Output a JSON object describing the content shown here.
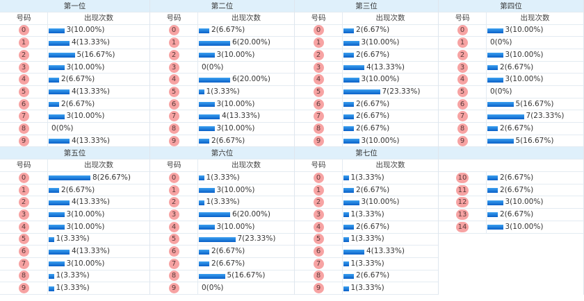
{
  "col_header_number": "号码",
  "col_header_count": "出现次数",
  "bar_color": "#0a78e0",
  "ball_color": "#f7a3a3",
  "positions": [
    {
      "title": "第一位",
      "rows": [
        {
          "n": "0",
          "count": 3,
          "text": "3(10.00%)"
        },
        {
          "n": "1",
          "count": 4,
          "text": "4(13.33%)"
        },
        {
          "n": "2",
          "count": 5,
          "text": "5(16.67%)"
        },
        {
          "n": "3",
          "count": 3,
          "text": "3(10.00%)"
        },
        {
          "n": "4",
          "count": 2,
          "text": "2(6.67%)"
        },
        {
          "n": "5",
          "count": 4,
          "text": "4(13.33%)"
        },
        {
          "n": "6",
          "count": 2,
          "text": "2(6.67%)"
        },
        {
          "n": "7",
          "count": 3,
          "text": "3(10.00%)"
        },
        {
          "n": "8",
          "count": 0,
          "text": "0(0%)"
        },
        {
          "n": "9",
          "count": 4,
          "text": "4(13.33%)"
        }
      ]
    },
    {
      "title": "第二位",
      "rows": [
        {
          "n": "0",
          "count": 2,
          "text": "2(6.67%)"
        },
        {
          "n": "1",
          "count": 6,
          "text": "6(20.00%)"
        },
        {
          "n": "2",
          "count": 3,
          "text": "3(10.00%)"
        },
        {
          "n": "3",
          "count": 0,
          "text": "0(0%)"
        },
        {
          "n": "4",
          "count": 6,
          "text": "6(20.00%)"
        },
        {
          "n": "5",
          "count": 1,
          "text": "1(3.33%)"
        },
        {
          "n": "6",
          "count": 3,
          "text": "3(10.00%)"
        },
        {
          "n": "7",
          "count": 4,
          "text": "4(13.33%)"
        },
        {
          "n": "8",
          "count": 3,
          "text": "3(10.00%)"
        },
        {
          "n": "9",
          "count": 2,
          "text": "2(6.67%)"
        }
      ]
    },
    {
      "title": "第三位",
      "rows": [
        {
          "n": "0",
          "count": 2,
          "text": "2(6.67%)"
        },
        {
          "n": "1",
          "count": 3,
          "text": "3(10.00%)"
        },
        {
          "n": "2",
          "count": 2,
          "text": "2(6.67%)"
        },
        {
          "n": "3",
          "count": 4,
          "text": "4(13.33%)"
        },
        {
          "n": "4",
          "count": 3,
          "text": "3(10.00%)"
        },
        {
          "n": "5",
          "count": 7,
          "text": "7(23.33%)"
        },
        {
          "n": "6",
          "count": 2,
          "text": "2(6.67%)"
        },
        {
          "n": "7",
          "count": 2,
          "text": "2(6.67%)"
        },
        {
          "n": "8",
          "count": 2,
          "text": "2(6.67%)"
        },
        {
          "n": "9",
          "count": 3,
          "text": "3(10.00%)"
        }
      ]
    },
    {
      "title": "第四位",
      "rows": [
        {
          "n": "0",
          "count": 3,
          "text": "3(10.00%)"
        },
        {
          "n": "1",
          "count": 0,
          "text": "0(0%)"
        },
        {
          "n": "2",
          "count": 3,
          "text": "3(10.00%)"
        },
        {
          "n": "3",
          "count": 2,
          "text": "2(6.67%)"
        },
        {
          "n": "4",
          "count": 3,
          "text": "3(10.00%)"
        },
        {
          "n": "5",
          "count": 0,
          "text": "0(0%)"
        },
        {
          "n": "6",
          "count": 5,
          "text": "5(16.67%)"
        },
        {
          "n": "7",
          "count": 7,
          "text": "7(23.33%)"
        },
        {
          "n": "8",
          "count": 2,
          "text": "2(6.67%)"
        },
        {
          "n": "9",
          "count": 5,
          "text": "5(16.67%)"
        }
      ]
    },
    {
      "title": "第五位",
      "rows": [
        {
          "n": "0",
          "count": 8,
          "text": "8(26.67%)"
        },
        {
          "n": "1",
          "count": 2,
          "text": "2(6.67%)"
        },
        {
          "n": "2",
          "count": 4,
          "text": "4(13.33%)"
        },
        {
          "n": "3",
          "count": 3,
          "text": "3(10.00%)"
        },
        {
          "n": "4",
          "count": 3,
          "text": "3(10.00%)"
        },
        {
          "n": "5",
          "count": 1,
          "text": "1(3.33%)"
        },
        {
          "n": "6",
          "count": 4,
          "text": "4(13.33%)"
        },
        {
          "n": "7",
          "count": 3,
          "text": "3(10.00%)"
        },
        {
          "n": "8",
          "count": 1,
          "text": "1(3.33%)"
        },
        {
          "n": "9",
          "count": 1,
          "text": "1(3.33%)"
        }
      ]
    },
    {
      "title": "第六位",
      "rows": [
        {
          "n": "0",
          "count": 1,
          "text": "1(3.33%)"
        },
        {
          "n": "1",
          "count": 3,
          "text": "3(10.00%)"
        },
        {
          "n": "2",
          "count": 1,
          "text": "1(3.33%)"
        },
        {
          "n": "3",
          "count": 6,
          "text": "6(20.00%)"
        },
        {
          "n": "4",
          "count": 3,
          "text": "3(10.00%)"
        },
        {
          "n": "5",
          "count": 7,
          "text": "7(23.33%)"
        },
        {
          "n": "6",
          "count": 2,
          "text": "2(6.67%)"
        },
        {
          "n": "7",
          "count": 2,
          "text": "2(6.67%)"
        },
        {
          "n": "8",
          "count": 5,
          "text": "5(16.67%)"
        },
        {
          "n": "9",
          "count": 0,
          "text": "0(0%)"
        }
      ]
    },
    {
      "title": "第七位",
      "rows": [
        {
          "n": "0",
          "count": 1,
          "text": "1(3.33%)"
        },
        {
          "n": "1",
          "count": 2,
          "text": "2(6.67%)"
        },
        {
          "n": "2",
          "count": 3,
          "text": "3(10.00%)"
        },
        {
          "n": "3",
          "count": 1,
          "text": "1(3.33%)"
        },
        {
          "n": "4",
          "count": 2,
          "text": "2(6.67%)"
        },
        {
          "n": "5",
          "count": 1,
          "text": "1(3.33%)"
        },
        {
          "n": "6",
          "count": 4,
          "text": "4(13.33%)"
        },
        {
          "n": "7",
          "count": 1,
          "text": "1(3.33%)"
        },
        {
          "n": "8",
          "count": 2,
          "text": "2(6.67%)"
        },
        {
          "n": "9",
          "count": 1,
          "text": "1(3.33%)"
        }
      ]
    },
    {
      "title": "",
      "rows": [
        {
          "n": "10",
          "count": 2,
          "text": "2(6.67%)"
        },
        {
          "n": "11",
          "count": 2,
          "text": "2(6.67%)"
        },
        {
          "n": "12",
          "count": 3,
          "text": "3(10.00%)"
        },
        {
          "n": "13",
          "count": 2,
          "text": "2(6.67%)"
        },
        {
          "n": "14",
          "count": 3,
          "text": "3(10.00%)"
        }
      ]
    }
  ]
}
